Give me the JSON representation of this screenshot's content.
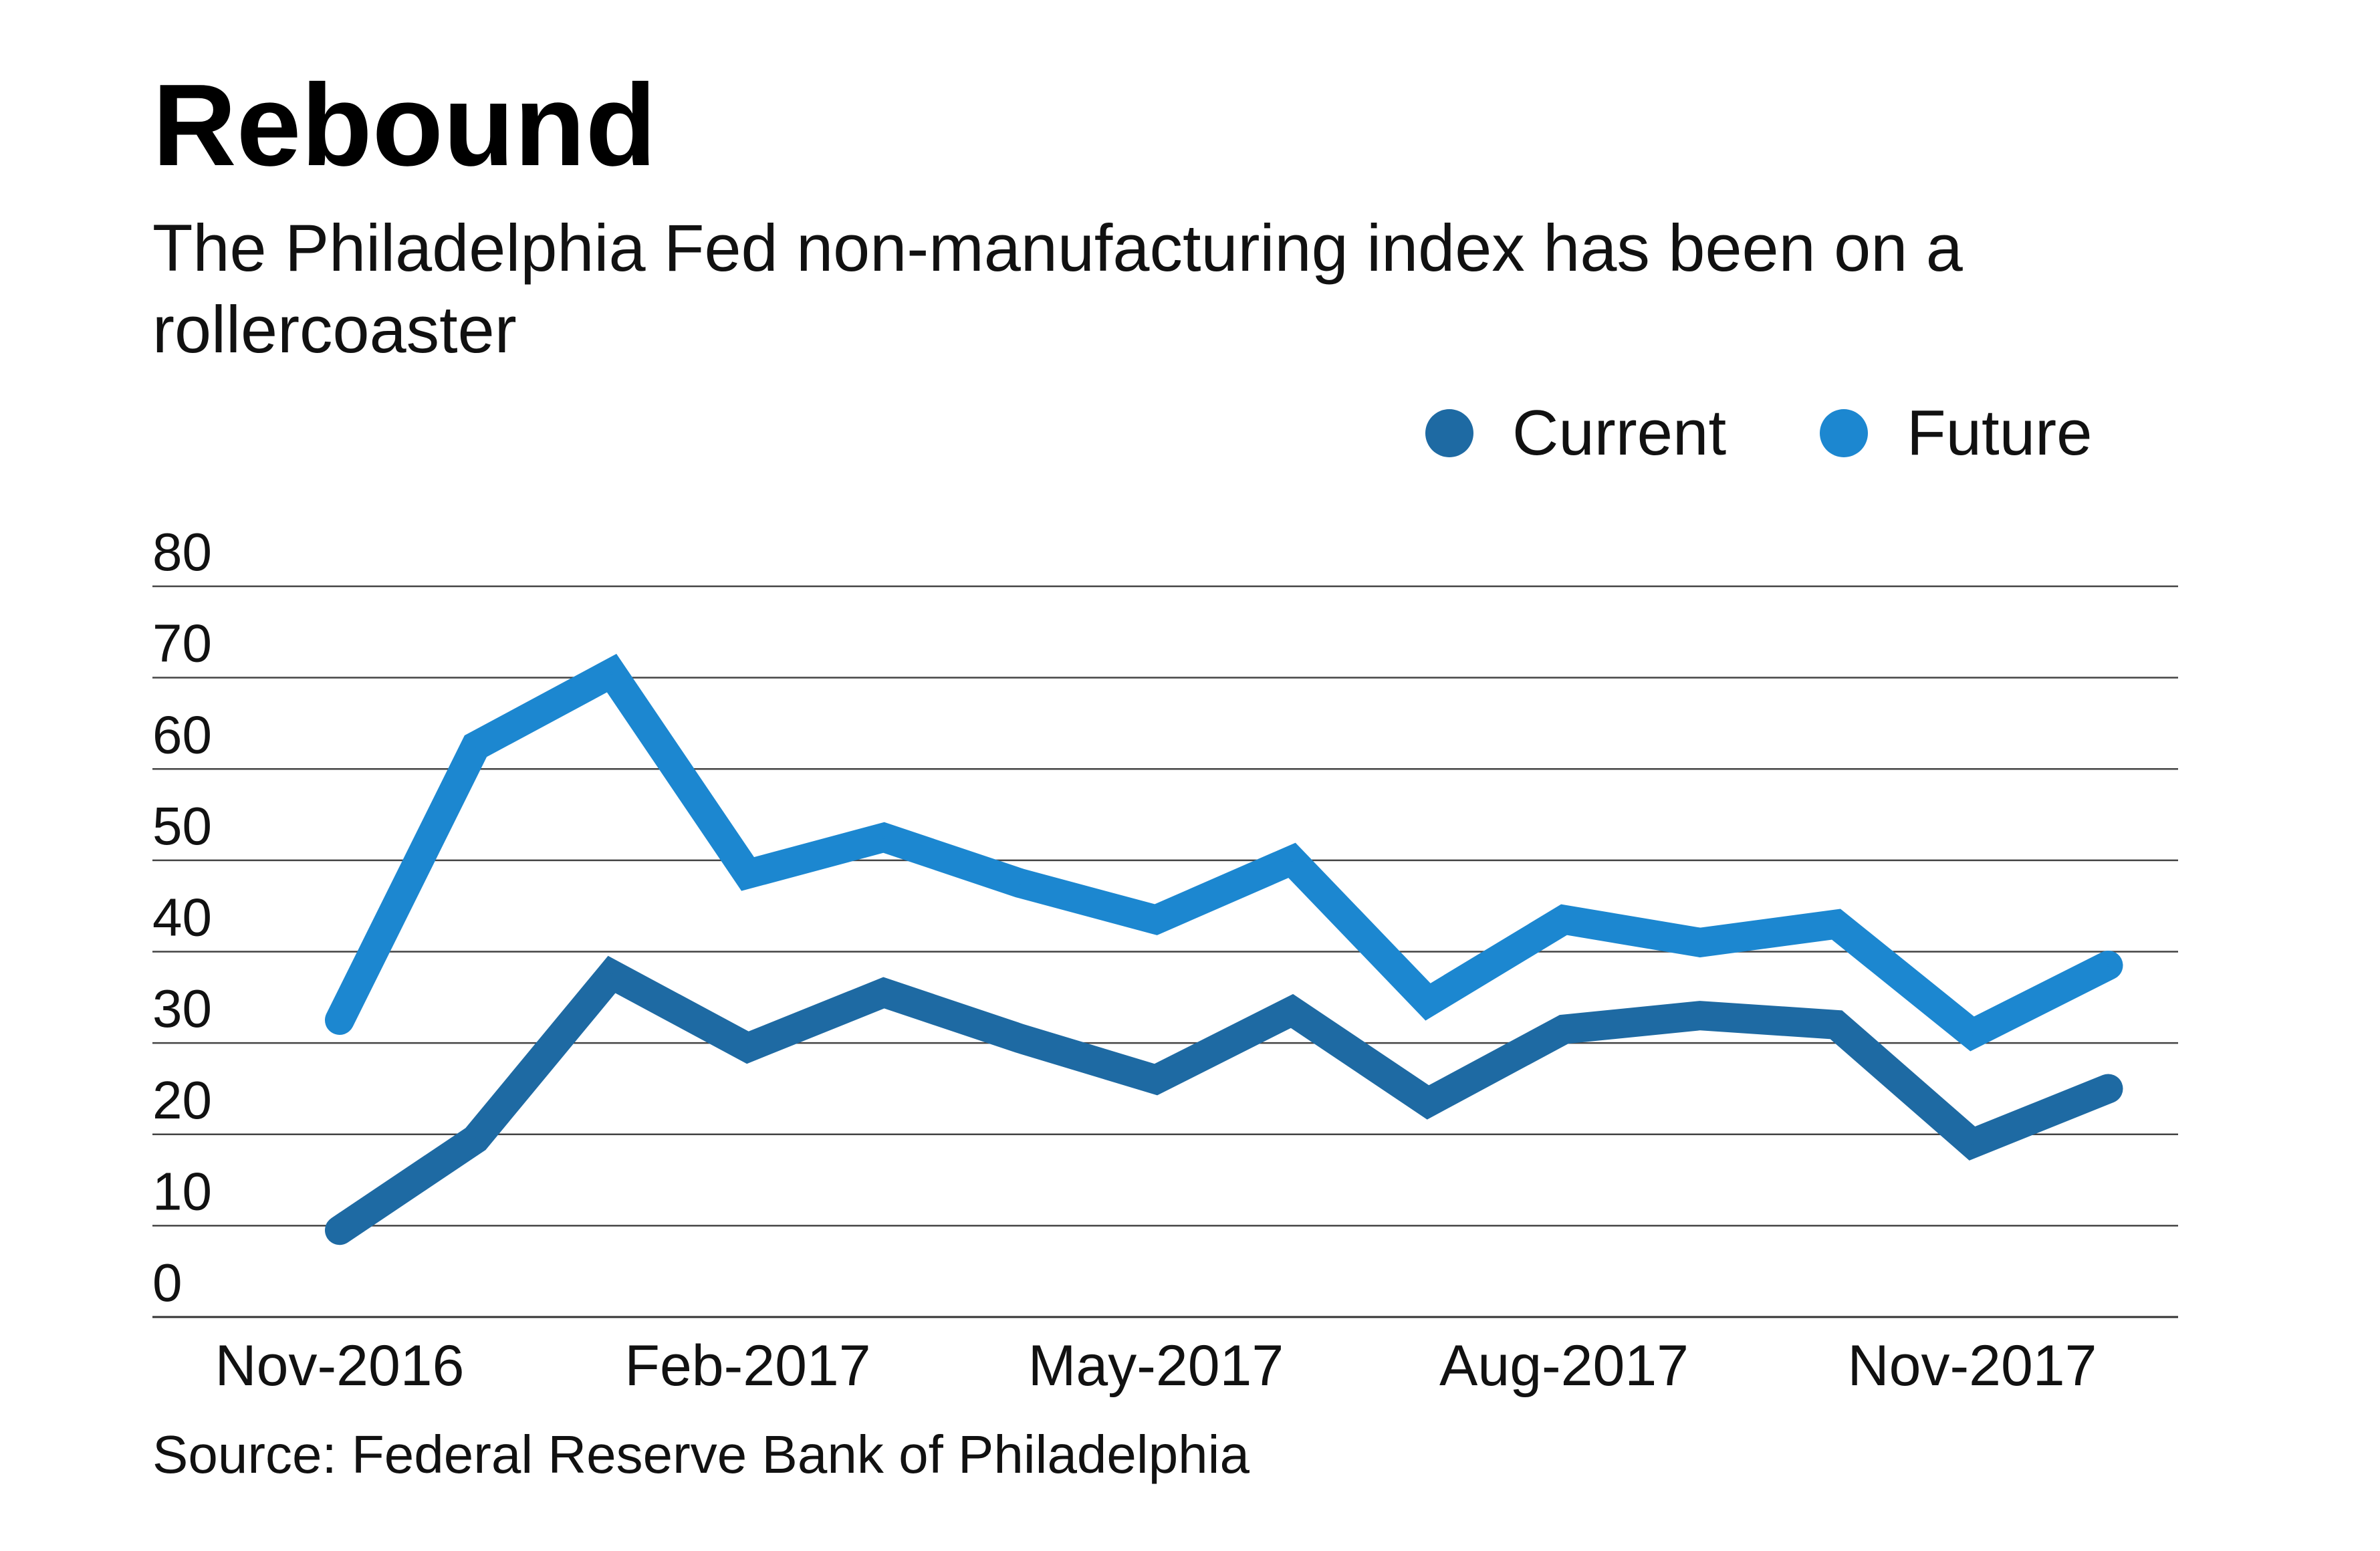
{
  "chart_data": {
    "type": "line",
    "title": "Rebound",
    "subtitle": "The Philadelphia Fed non-manufacturing index has been on a rollercoaster",
    "source": "Source: Federal Reserve Bank of Philadelphia",
    "x": [
      "2016-11",
      "2016-12",
      "2017-01",
      "2017-02",
      "2017-03",
      "2017-04",
      "2017-05",
      "2017-06",
      "2017-07",
      "2017-08",
      "2017-09",
      "2017-10",
      "2017-11",
      "2017-12"
    ],
    "x_tick_labels": [
      "Nov-2016",
      "Feb-2017",
      "May-2017",
      "Aug-2017",
      "Nov-2017"
    ],
    "y_ticks": [
      0,
      10,
      20,
      30,
      40,
      50,
      60,
      70,
      80
    ],
    "ylim": [
      0,
      80
    ],
    "grid": true,
    "legend_position": "top-right",
    "series": [
      {
        "name": "Current",
        "color": "#1e6aa3",
        "values": [
          9.5,
          19.5,
          37.5,
          29.5,
          35.5,
          30.5,
          26,
          33.5,
          23.5,
          31.5,
          33,
          32,
          19,
          25
        ]
      },
      {
        "name": "Future",
        "color": "#1c87d0",
        "values": [
          32.5,
          62.5,
          70.5,
          48.5,
          52.5,
          47.5,
          43.5,
          50,
          34.5,
          43.5,
          41,
          43,
          31,
          38.5
        ]
      }
    ]
  }
}
